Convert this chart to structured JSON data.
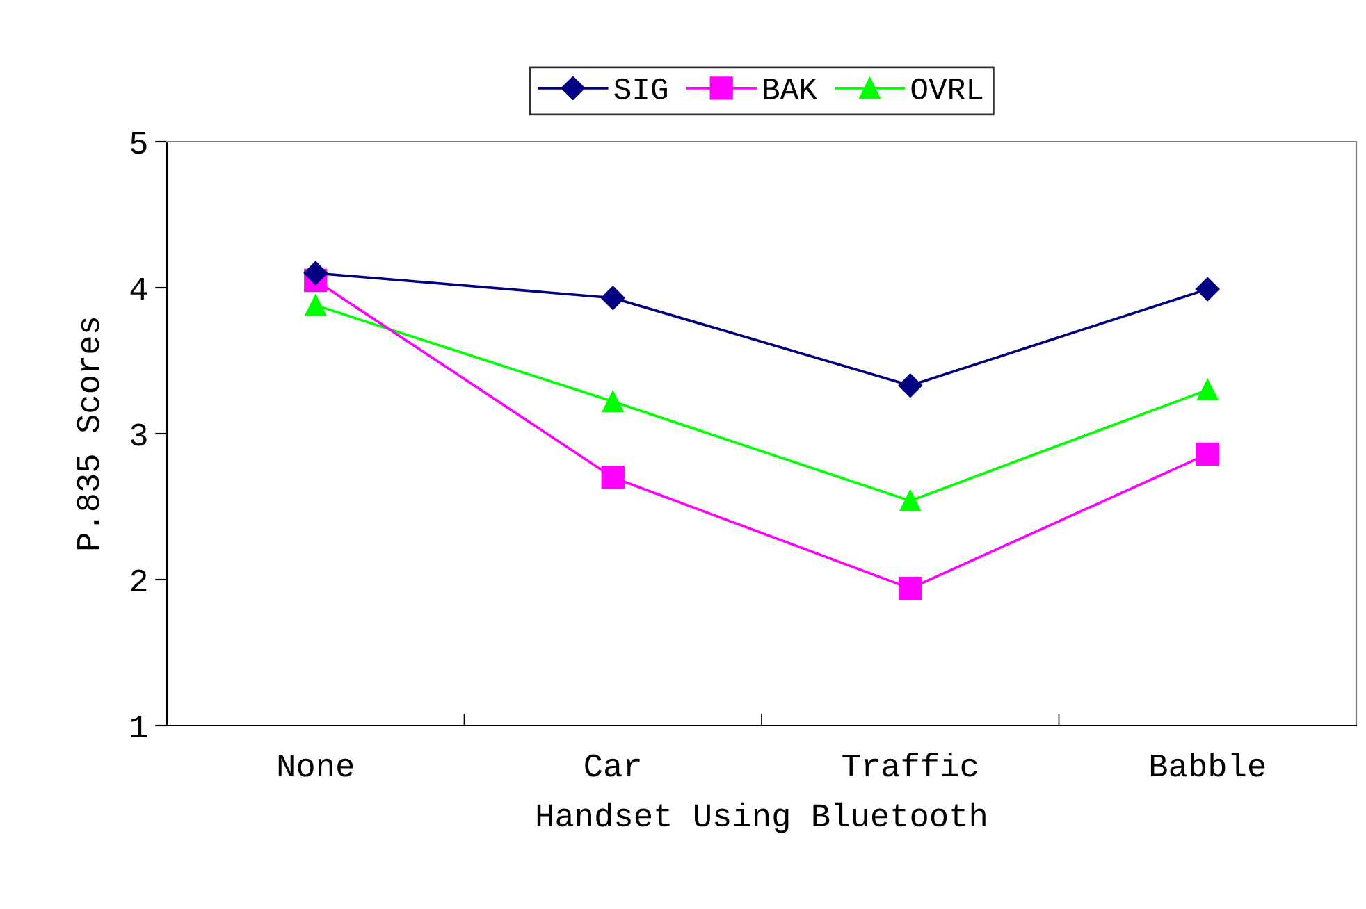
{
  "chart_data": {
    "type": "line",
    "xlabel": "Handset Using Bluetooth",
    "ylabel": "P.835 Scores",
    "categories": [
      "None",
      "Car",
      "Traffic",
      "Babble"
    ],
    "series": [
      {
        "name": "SIG",
        "color": "#000080",
        "marker": "diamond",
        "values": [
          4.1,
          3.93,
          3.33,
          3.99
        ]
      },
      {
        "name": "BAK",
        "color": "#ff00ff",
        "marker": "square",
        "values": [
          4.05,
          2.7,
          1.94,
          2.86
        ]
      },
      {
        "name": "OVRL",
        "color": "#00ff00",
        "marker": "triangle",
        "values": [
          3.88,
          3.22,
          2.54,
          3.3
        ]
      }
    ],
    "ylim": [
      1,
      5
    ],
    "yticks": [
      1,
      2,
      3,
      4,
      5
    ],
    "grid": false,
    "legend": "top"
  }
}
